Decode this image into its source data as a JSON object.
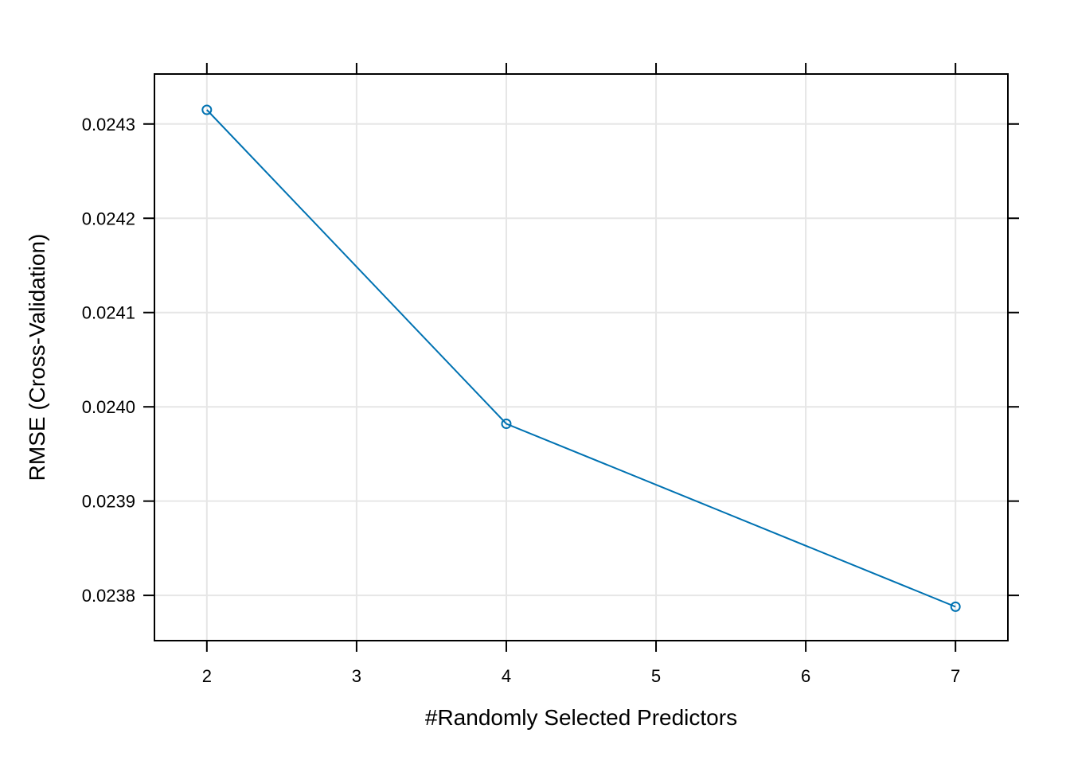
{
  "chart_data": {
    "type": "line",
    "title": "",
    "xlabel": "#Randomly Selected Predictors",
    "ylabel": "RMSE (Cross-Validation)",
    "x": [
      2,
      4,
      7
    ],
    "series": [
      {
        "values": [
          0.024315,
          0.023982,
          0.023788
        ],
        "color": "#0072B2"
      }
    ],
    "xticks": [
      2,
      3,
      4,
      5,
      6,
      7
    ],
    "xtick_labels": [
      "2",
      "3",
      "4",
      "5",
      "6",
      "7"
    ],
    "yticks": [
      0.0238,
      0.0239,
      0.024,
      0.0241,
      0.0242,
      0.0243
    ],
    "ytick_labels": [
      "0.0238",
      "0.0239",
      "0.0240",
      "0.0241",
      "0.0242",
      "0.0243"
    ],
    "xlim": [
      1.65,
      7.35
    ],
    "ylim": [
      0.023752,
      0.024353
    ],
    "grid": true,
    "marker": "open-circle"
  }
}
